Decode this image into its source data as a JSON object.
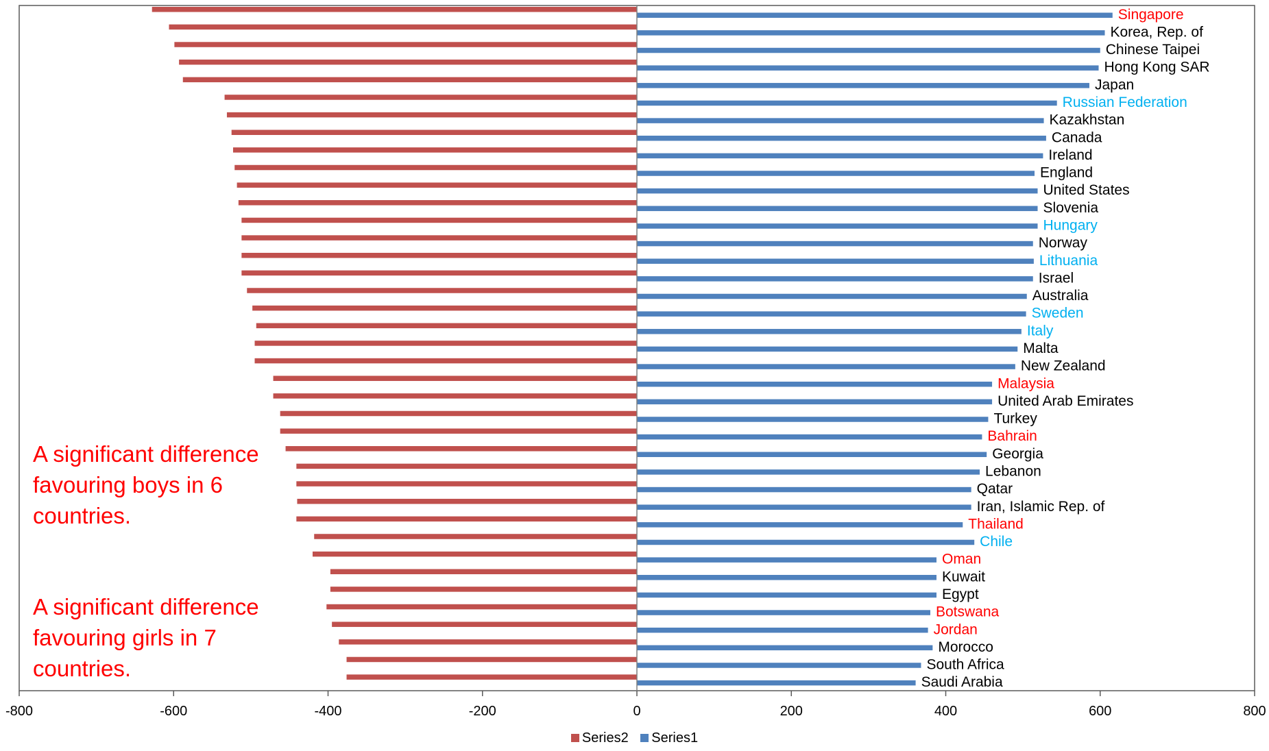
{
  "chart_data": {
    "type": "bar",
    "orientation": "horizontal",
    "xlim": [
      -800,
      800
    ],
    "x_ticks": [
      "-800",
      "-600",
      "-400",
      "-200",
      "0",
      "200",
      "400",
      "600",
      "800"
    ],
    "grid": false,
    "legend_position": "bottom-center",
    "series": [
      {
        "name": "Series2",
        "color": "#c0504d",
        "values": [
          -628,
          -606,
          -599,
          -593,
          -588,
          -534,
          -531,
          -525,
          -523,
          -521,
          -518,
          -516,
          -512,
          -512,
          -512,
          -512,
          -505,
          -498,
          -493,
          -495,
          -495,
          -471,
          -471,
          -462,
          -462,
          -455,
          -441,
          -441,
          -440,
          -441,
          -418,
          -420,
          -397,
          -397,
          -402,
          -395,
          -386,
          -376,
          -376
        ]
      },
      {
        "name": "Series1",
        "color": "#4f81bd",
        "values": [
          616,
          606,
          600,
          598,
          586,
          544,
          527,
          530,
          526,
          515,
          519,
          519,
          519,
          513,
          514,
          513,
          505,
          504,
          498,
          493,
          490,
          460,
          460,
          455,
          447,
          453,
          444,
          433,
          433,
          422,
          437,
          388,
          388,
          388,
          380,
          377,
          383,
          368,
          361
        ]
      }
    ],
    "categories": [
      "Singapore",
      "Korea, Rep. of",
      "Chinese Taipei",
      "Hong Kong SAR",
      "Japan",
      "Russian Federation",
      "Kazakhstan",
      "Canada",
      "Ireland",
      "England",
      "United States",
      "Slovenia",
      "Hungary",
      "Norway",
      "Lithuania",
      "Israel",
      "Australia",
      "Sweden",
      "Italy",
      "Malta",
      "New Zealand",
      "Malaysia",
      "United Arab Emirates",
      "Turkey",
      "Bahrain",
      "Georgia",
      "Lebanon",
      "Qatar",
      "Iran, Islamic Rep. of",
      "Thailand",
      "Chile",
      "Oman",
      "Kuwait",
      "Egypt",
      "Botswana",
      "Jordan",
      "Morocco",
      "South Africa",
      "Saudi Arabia"
    ],
    "category_label_colors": [
      "#ff0000",
      "#000000",
      "#000000",
      "#000000",
      "#000000",
      "#00b0f0",
      "#000000",
      "#000000",
      "#000000",
      "#000000",
      "#000000",
      "#000000",
      "#00b0f0",
      "#000000",
      "#00b0f0",
      "#000000",
      "#000000",
      "#00b0f0",
      "#00b0f0",
      "#000000",
      "#000000",
      "#ff0000",
      "#000000",
      "#000000",
      "#ff0000",
      "#000000",
      "#000000",
      "#000000",
      "#000000",
      "#ff0000",
      "#00b0f0",
      "#ff0000",
      "#000000",
      "#000000",
      "#ff0000",
      "#ff0000",
      "#000000",
      "#000000",
      "#000000"
    ],
    "annotations": [
      {
        "text": "A significant difference\nfavouring boys in 6\ncountries.",
        "color": "#ff0000"
      },
      {
        "text": "A significant difference\nfavouring girls in 7\ncountries.",
        "color": "#ff0000"
      }
    ]
  }
}
